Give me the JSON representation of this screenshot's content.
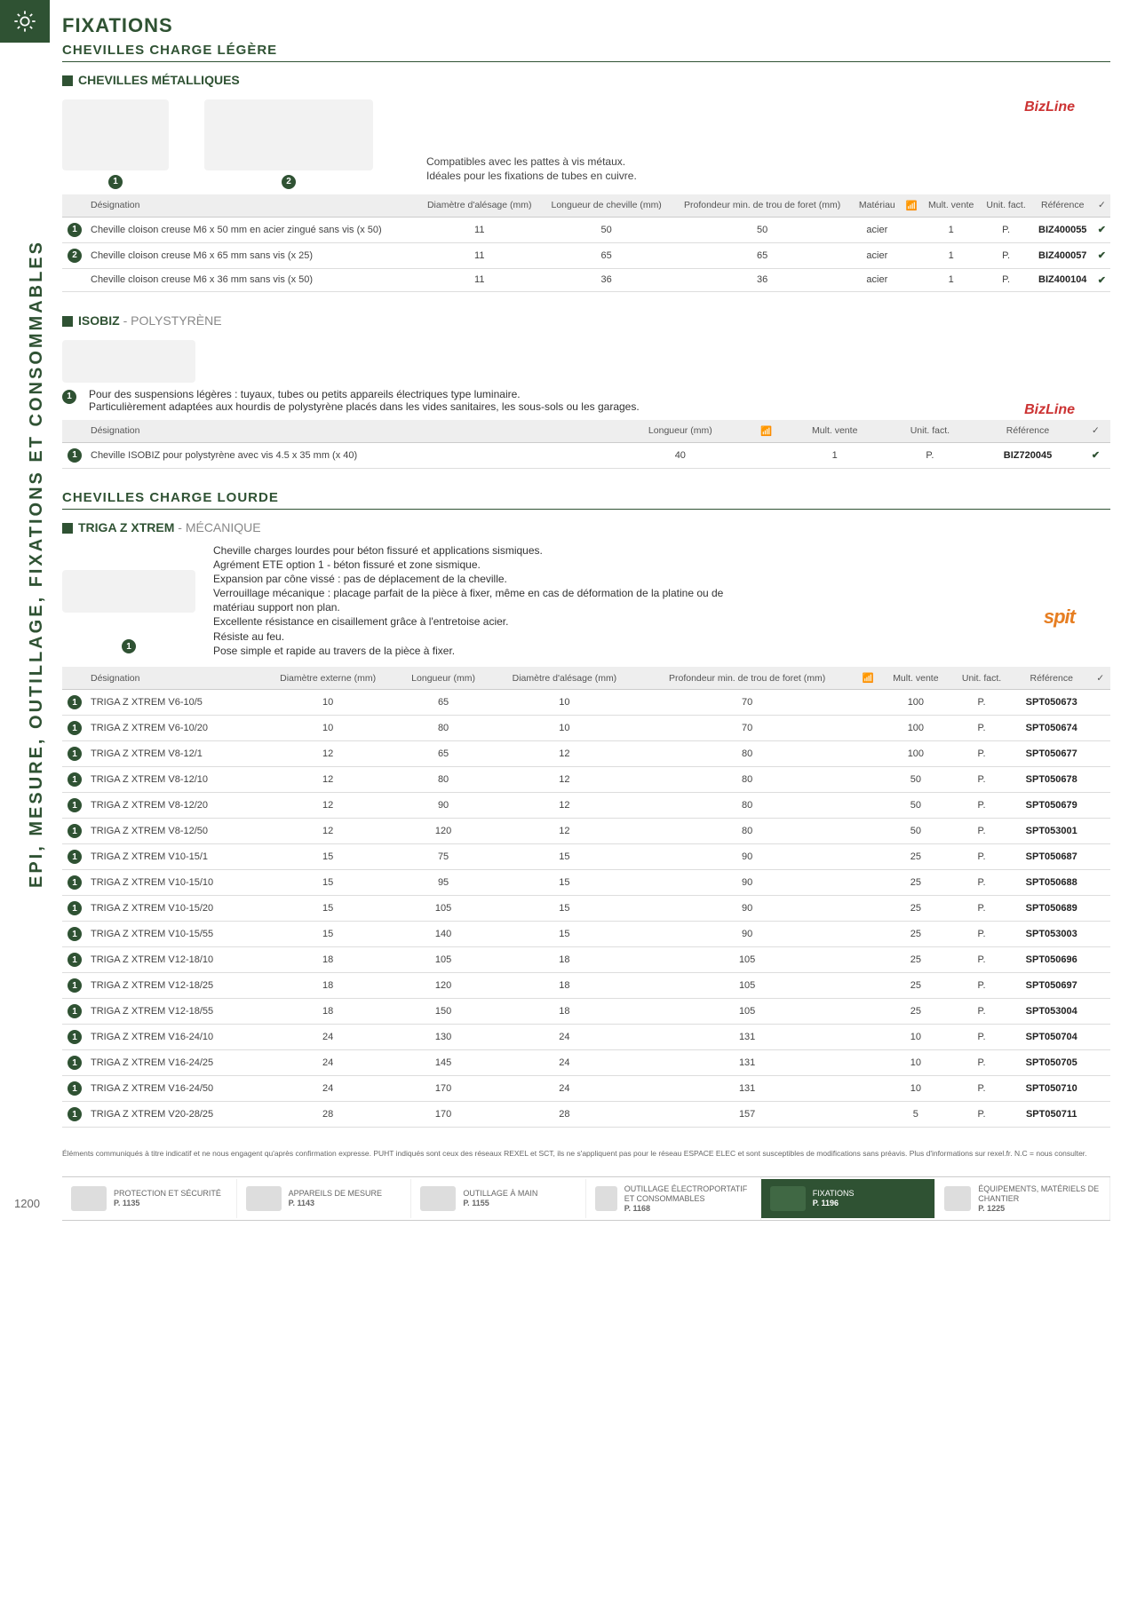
{
  "page_number": "1200",
  "side_tab": "EPI, MESURE, OUTILLAGE, FIXATIONS ET CONSOMMABLES",
  "header": {
    "title": "FIXATIONS"
  },
  "footer_note": "Éléments communiqués à titre indicatif et ne nous engagent qu'après confirmation expresse. PUHT indiqués sont ceux des réseaux REXEL et SCT, ils ne s'appliquent pas pour le réseau ESPACE ELEC et sont susceptibles de modifications sans préavis. Plus d'informations sur rexel.fr. N.C = nous consulter.",
  "footer_tabs": [
    {
      "label": "PROTECTION ET SÉCURITÉ",
      "page": "P. 1135"
    },
    {
      "label": "APPAREILS DE MESURE",
      "page": "P. 1143"
    },
    {
      "label": "OUTILLAGE À MAIN",
      "page": "P. 1155"
    },
    {
      "label": "OUTILLAGE ÉLECTROPORTATIF ET CONSOMMABLES",
      "page": "P. 1168"
    },
    {
      "label": "FIXATIONS",
      "page": "P. 1196",
      "active": true
    },
    {
      "label": "ÉQUIPEMENTS, MATÉRIELS DE CHANTIER",
      "page": "P. 1225"
    }
  ],
  "sections": {
    "s1": {
      "group_title": "CHEVILLES CHARGE LÉGÈRE",
      "title": "CHEVILLES MÉTALLIQUES",
      "brand": "BizLine",
      "description": "Compatibles avec les pattes à vis métaux.\nIdéales pour les fixations de tubes en cuivre.",
      "columns": [
        "",
        "Désignation",
        "Diamètre d'alésage (mm)",
        "Longueur de cheville (mm)",
        "Profondeur min. de trou de foret (mm)",
        "Matériau",
        "📶",
        "Mult. vente",
        "Unit. fact.",
        "Référence",
        "✓"
      ],
      "rows": [
        {
          "badge": "1",
          "cells": [
            "Cheville cloison creuse M6 x 50 mm en acier zingué sans vis (x 50)",
            "11",
            "50",
            "50",
            "acier",
            "",
            "1",
            "P.",
            "BIZ400055",
            "✔"
          ]
        },
        {
          "badge": "2",
          "cells": [
            "Cheville cloison creuse M6 x 65 mm sans vis (x 25)",
            "11",
            "65",
            "65",
            "acier",
            "",
            "1",
            "P.",
            "BIZ400057",
            "✔"
          ]
        },
        {
          "badge": "",
          "cells": [
            "Cheville cloison creuse M6 x 36 mm sans vis (x 50)",
            "11",
            "36",
            "36",
            "acier",
            "",
            "1",
            "P.",
            "BIZ400104",
            "✔"
          ]
        }
      ]
    },
    "s2": {
      "title": "ISOBIZ",
      "subtitle": "- POLYSTYRÈNE",
      "brand": "BizLine",
      "description": "Pour des suspensions légères : tuyaux, tubes ou petits appareils électriques type luminaire.\nParticulièrement adaptées aux hourdis de polystyrène placés dans les vides sanitaires, les sous-sols ou les garages.",
      "columns": [
        "",
        "Désignation",
        "Longueur (mm)",
        "📶",
        "Mult. vente",
        "Unit. fact.",
        "Référence",
        "✓"
      ],
      "rows": [
        {
          "badge": "1",
          "cells": [
            "Cheville ISOBIZ pour polystyrène avec vis 4.5 x 35 mm (x 40)",
            "40",
            "",
            "1",
            "P.",
            "BIZ720045",
            "✔"
          ]
        }
      ]
    },
    "s3": {
      "group_title": "CHEVILLES CHARGE LOURDE",
      "title": "TRIGA Z XTREM",
      "subtitle": "- MÉCANIQUE",
      "brand": "spit",
      "description": "Cheville charges lourdes pour béton fissuré et applications sismiques.\nAgrément ETE option 1 - béton fissuré et zone sismique.\nExpansion par cône vissé : pas de déplacement de la cheville.\nVerrouillage mécanique : placage parfait de la pièce à fixer, même en cas de déformation de la platine ou de matériau support non plan.\nExcellente résistance en cisaillement grâce à l'entretoise acier.\nRésiste au feu.\nPose simple et rapide au travers de la pièce à fixer.",
      "columns": [
        "",
        "Désignation",
        "Diamètre externe (mm)",
        "Longueur (mm)",
        "Diamètre d'alésage (mm)",
        "Profondeur min. de trou de foret (mm)",
        "📶",
        "Mult. vente",
        "Unit. fact.",
        "Référence",
        "✓"
      ],
      "rows": [
        {
          "badge": "1",
          "cells": [
            "TRIGA Z XTREM V6-10/5",
            "10",
            "65",
            "10",
            "70",
            "",
            "100",
            "P.",
            "SPT050673",
            ""
          ]
        },
        {
          "badge": "1",
          "cells": [
            "TRIGA Z XTREM V6-10/20",
            "10",
            "80",
            "10",
            "70",
            "",
            "100",
            "P.",
            "SPT050674",
            ""
          ]
        },
        {
          "badge": "1",
          "cells": [
            "TRIGA Z XTREM V8-12/1",
            "12",
            "65",
            "12",
            "80",
            "",
            "100",
            "P.",
            "SPT050677",
            ""
          ]
        },
        {
          "badge": "1",
          "cells": [
            "TRIGA Z XTREM V8-12/10",
            "12",
            "80",
            "12",
            "80",
            "",
            "50",
            "P.",
            "SPT050678",
            ""
          ]
        },
        {
          "badge": "1",
          "cells": [
            "TRIGA Z XTREM V8-12/20",
            "12",
            "90",
            "12",
            "80",
            "",
            "50",
            "P.",
            "SPT050679",
            ""
          ]
        },
        {
          "badge": "1",
          "cells": [
            "TRIGA Z XTREM V8-12/50",
            "12",
            "120",
            "12",
            "80",
            "",
            "50",
            "P.",
            "SPT053001",
            ""
          ]
        },
        {
          "badge": "1",
          "cells": [
            "TRIGA Z XTREM V10-15/1",
            "15",
            "75",
            "15",
            "90",
            "",
            "25",
            "P.",
            "SPT050687",
            ""
          ]
        },
        {
          "badge": "1",
          "cells": [
            "TRIGA Z XTREM V10-15/10",
            "15",
            "95",
            "15",
            "90",
            "",
            "25",
            "P.",
            "SPT050688",
            ""
          ]
        },
        {
          "badge": "1",
          "cells": [
            "TRIGA Z XTREM V10-15/20",
            "15",
            "105",
            "15",
            "90",
            "",
            "25",
            "P.",
            "SPT050689",
            ""
          ]
        },
        {
          "badge": "1",
          "cells": [
            "TRIGA Z XTREM V10-15/55",
            "15",
            "140",
            "15",
            "90",
            "",
            "25",
            "P.",
            "SPT053003",
            ""
          ]
        },
        {
          "badge": "1",
          "cells": [
            "TRIGA Z XTREM V12-18/10",
            "18",
            "105",
            "18",
            "105",
            "",
            "25",
            "P.",
            "SPT050696",
            ""
          ]
        },
        {
          "badge": "1",
          "cells": [
            "TRIGA Z XTREM V12-18/25",
            "18",
            "120",
            "18",
            "105",
            "",
            "25",
            "P.",
            "SPT050697",
            ""
          ]
        },
        {
          "badge": "1",
          "cells": [
            "TRIGA Z XTREM V12-18/55",
            "18",
            "150",
            "18",
            "105",
            "",
            "25",
            "P.",
            "SPT053004",
            ""
          ]
        },
        {
          "badge": "1",
          "cells": [
            "TRIGA Z XTREM V16-24/10",
            "24",
            "130",
            "24",
            "131",
            "",
            "10",
            "P.",
            "SPT050704",
            ""
          ]
        },
        {
          "badge": "1",
          "cells": [
            "TRIGA Z XTREM V16-24/25",
            "24",
            "145",
            "24",
            "131",
            "",
            "10",
            "P.",
            "SPT050705",
            ""
          ]
        },
        {
          "badge": "1",
          "cells": [
            "TRIGA Z XTREM V16-24/50",
            "24",
            "170",
            "24",
            "131",
            "",
            "10",
            "P.",
            "SPT050710",
            ""
          ]
        },
        {
          "badge": "1",
          "cells": [
            "TRIGA Z XTREM V20-28/25",
            "28",
            "170",
            "28",
            "157",
            "",
            "5",
            "P.",
            "SPT050711",
            ""
          ]
        }
      ]
    }
  }
}
